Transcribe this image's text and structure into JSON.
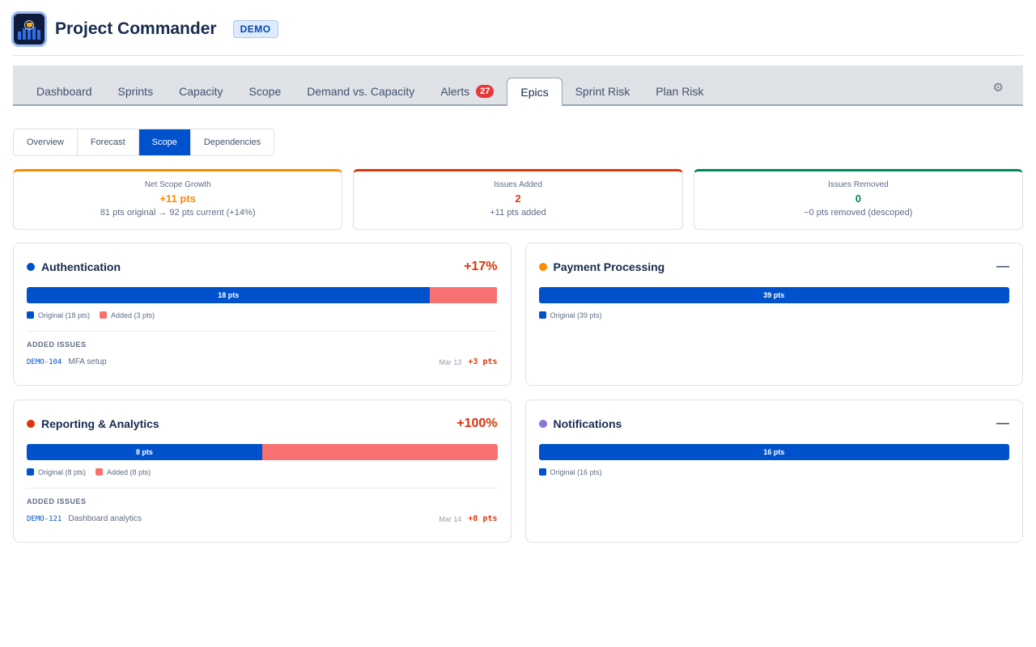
{
  "app": {
    "title": "Project Commander",
    "badge": "DEMO"
  },
  "tabs": [
    {
      "label": "Dashboard"
    },
    {
      "label": "Sprints"
    },
    {
      "label": "Capacity"
    },
    {
      "label": "Scope"
    },
    {
      "label": "Demand vs. Capacity"
    },
    {
      "label": "Alerts",
      "count": "27"
    },
    {
      "label": "Epics",
      "active": true
    },
    {
      "label": "Sprint Risk"
    },
    {
      "label": "Plan Risk"
    }
  ],
  "settings_icon": "gear-icon",
  "subtabs": [
    {
      "label": "Overview"
    },
    {
      "label": "Forecast"
    },
    {
      "label": "Scope",
      "active": true
    },
    {
      "label": "Dependencies"
    }
  ],
  "kpis": [
    {
      "label": "Net Scope Growth",
      "value": "+11 pts",
      "sub": "81 pts original → 92 pts current (+14%)",
      "color": "#ff8b00"
    },
    {
      "label": "Issues Added",
      "value": "2",
      "sub": "+11 pts added",
      "color": "#de350b"
    },
    {
      "label": "Issues Removed",
      "value": "0",
      "sub": "−0 pts removed (descoped)",
      "color": "#00875a"
    }
  ],
  "colors": {
    "original": "#0052cc",
    "added": "#f87171"
  },
  "epics": [
    {
      "name": "Authentication",
      "dot": "#0052cc",
      "change": "+17%",
      "original": 18,
      "added": 3,
      "bar_label": "18 pts",
      "legend_original": "Original (18 pts)",
      "legend_added": "Added (3 pts)",
      "added_heading": "ADDED ISSUES",
      "issues": [
        {
          "key": "DEMO-104",
          "summary": "MFA setup",
          "date": "Mar 13",
          "points": "+3 pts"
        }
      ]
    },
    {
      "name": "Payment Processing",
      "dot": "#ff8b00",
      "change": "—",
      "original": 39,
      "added": 0,
      "bar_label": "39 pts",
      "legend_original": "Original (39 pts)",
      "issues": []
    },
    {
      "name": "Reporting & Analytics",
      "dot": "#de350b",
      "change": "+100%",
      "original": 8,
      "added": 8,
      "bar_label": "8 pts",
      "legend_original": "Original (8 pts)",
      "legend_added": "Added (8 pts)",
      "added_heading": "ADDED ISSUES",
      "issues": [
        {
          "key": "DEMO-121",
          "summary": "Dashboard analytics",
          "date": "Mar 14",
          "points": "+8 pts"
        }
      ]
    },
    {
      "name": "Notifications",
      "dot": "#8777d9",
      "change": "—",
      "original": 16,
      "added": 0,
      "bar_label": "16 pts",
      "legend_original": "Original (16 pts)",
      "issues": []
    }
  ]
}
